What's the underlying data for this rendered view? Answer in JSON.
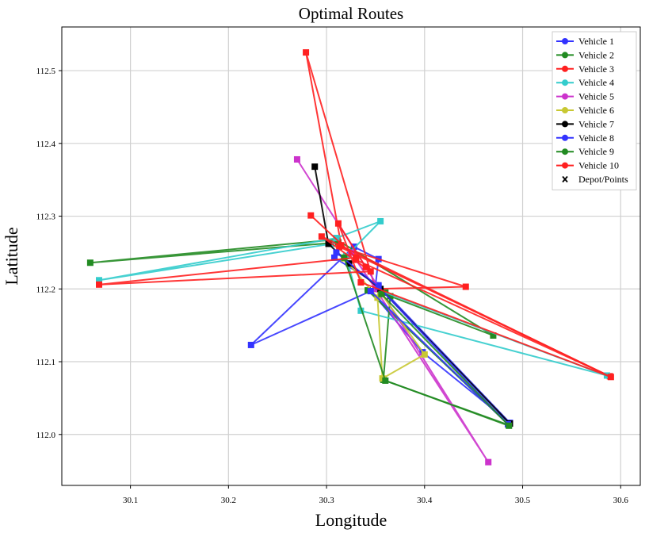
{
  "chart_data": {
    "type": "line",
    "title": "Optimal Routes",
    "xlabel": "Longitude",
    "ylabel": "Latitude",
    "xlim": [
      30.03,
      30.62
    ],
    "ylim": [
      111.93,
      112.56
    ],
    "xticks": [
      30.1,
      30.2,
      30.3,
      30.4,
      30.5,
      30.6
    ],
    "yticks": [
      112.0,
      112.1,
      112.2,
      112.3,
      112.4,
      112.5
    ],
    "grid": true,
    "legend_position": "top-right",
    "series": [
      {
        "name": "Vehicle 1",
        "color": "#3333ff",
        "marker": "square",
        "points": [
          [
            30.308,
            112.243
          ],
          [
            30.353,
            112.205
          ],
          [
            30.487,
            112.016
          ],
          [
            30.398,
            112.113
          ],
          [
            30.345,
            112.197
          ],
          [
            30.223,
            112.123
          ],
          [
            30.328,
            112.258
          ],
          [
            30.353,
            112.241
          ],
          [
            30.35,
            112.205
          ]
        ]
      },
      {
        "name": "Vehicle 2",
        "color": "#228b22",
        "marker": "square",
        "points": [
          [
            30.312,
            112.264
          ],
          [
            30.059,
            112.236
          ],
          [
            30.31,
            112.268
          ],
          [
            30.47,
            112.136
          ],
          [
            30.365,
            112.19
          ],
          [
            30.358,
            112.075
          ],
          [
            30.486,
            112.013
          ],
          [
            30.342,
            112.198
          ],
          [
            30.36,
            112.195
          ]
        ]
      },
      {
        "name": "Vehicle 3",
        "color": "#ff2020",
        "marker": "square",
        "points": [
          [
            30.315,
            112.26
          ],
          [
            30.279,
            112.525
          ],
          [
            30.35,
            112.2
          ],
          [
            30.442,
            112.203
          ],
          [
            30.313,
            112.258
          ],
          [
            30.589,
            112.08
          ],
          [
            30.33,
            112.24
          ]
        ]
      },
      {
        "name": "Vehicle 4",
        "color": "#33cccc",
        "marker": "square",
        "points": [
          [
            30.305,
            112.262
          ],
          [
            30.068,
            112.212
          ],
          [
            30.31,
            112.27
          ],
          [
            30.355,
            112.293
          ],
          [
            30.32,
            112.245
          ],
          [
            30.335,
            112.17
          ],
          [
            30.586,
            112.081
          ],
          [
            30.35,
            112.2
          ]
        ]
      },
      {
        "name": "Vehicle 5",
        "color": "#cc33cc",
        "marker": "square",
        "points": [
          [
            30.27,
            112.378
          ],
          [
            30.34,
            112.23
          ],
          [
            30.465,
            111.962
          ],
          [
            30.35,
            112.2
          ],
          [
            30.325,
            112.25
          ]
        ]
      },
      {
        "name": "Vehicle 6",
        "color": "#c8c832",
        "marker": "square",
        "points": [
          [
            30.318,
            112.242
          ],
          [
            30.352,
            112.188
          ],
          [
            30.357,
            112.077
          ],
          [
            30.4,
            112.11
          ],
          [
            30.355,
            112.195
          ]
        ]
      },
      {
        "name": "Vehicle 7",
        "color": "#000000",
        "marker": "square",
        "points": [
          [
            30.288,
            112.368
          ],
          [
            30.302,
            112.262
          ],
          [
            30.323,
            112.235
          ],
          [
            30.355,
            112.2
          ],
          [
            30.487,
            112.015
          ]
        ]
      },
      {
        "name": "Vehicle 8",
        "color": "#3333ff",
        "marker": "square",
        "points": [
          [
            30.31,
            112.25
          ],
          [
            30.353,
            112.203
          ],
          [
            30.485,
            112.014
          ],
          [
            30.345,
            112.197
          ]
        ]
      },
      {
        "name": "Vehicle 9",
        "color": "#228b22",
        "marker": "square",
        "points": [
          [
            30.318,
            112.243
          ],
          [
            30.36,
            112.074
          ],
          [
            30.486,
            112.012
          ],
          [
            30.356,
            112.193
          ]
        ]
      },
      {
        "name": "Vehicle 10",
        "color": "#ff2020",
        "marker": "square",
        "points": [
          [
            30.284,
            112.301
          ],
          [
            30.33,
            112.243
          ],
          [
            30.068,
            112.206
          ],
          [
            30.345,
            112.224
          ],
          [
            30.295,
            112.272
          ],
          [
            30.59,
            112.079
          ],
          [
            30.335,
            112.209
          ],
          [
            30.312,
            112.29
          ],
          [
            30.34,
            112.23
          ]
        ]
      }
    ],
    "depot_legend": "Depot/Points",
    "depot_color": "#000000",
    "depot_marker": "x-icon"
  }
}
